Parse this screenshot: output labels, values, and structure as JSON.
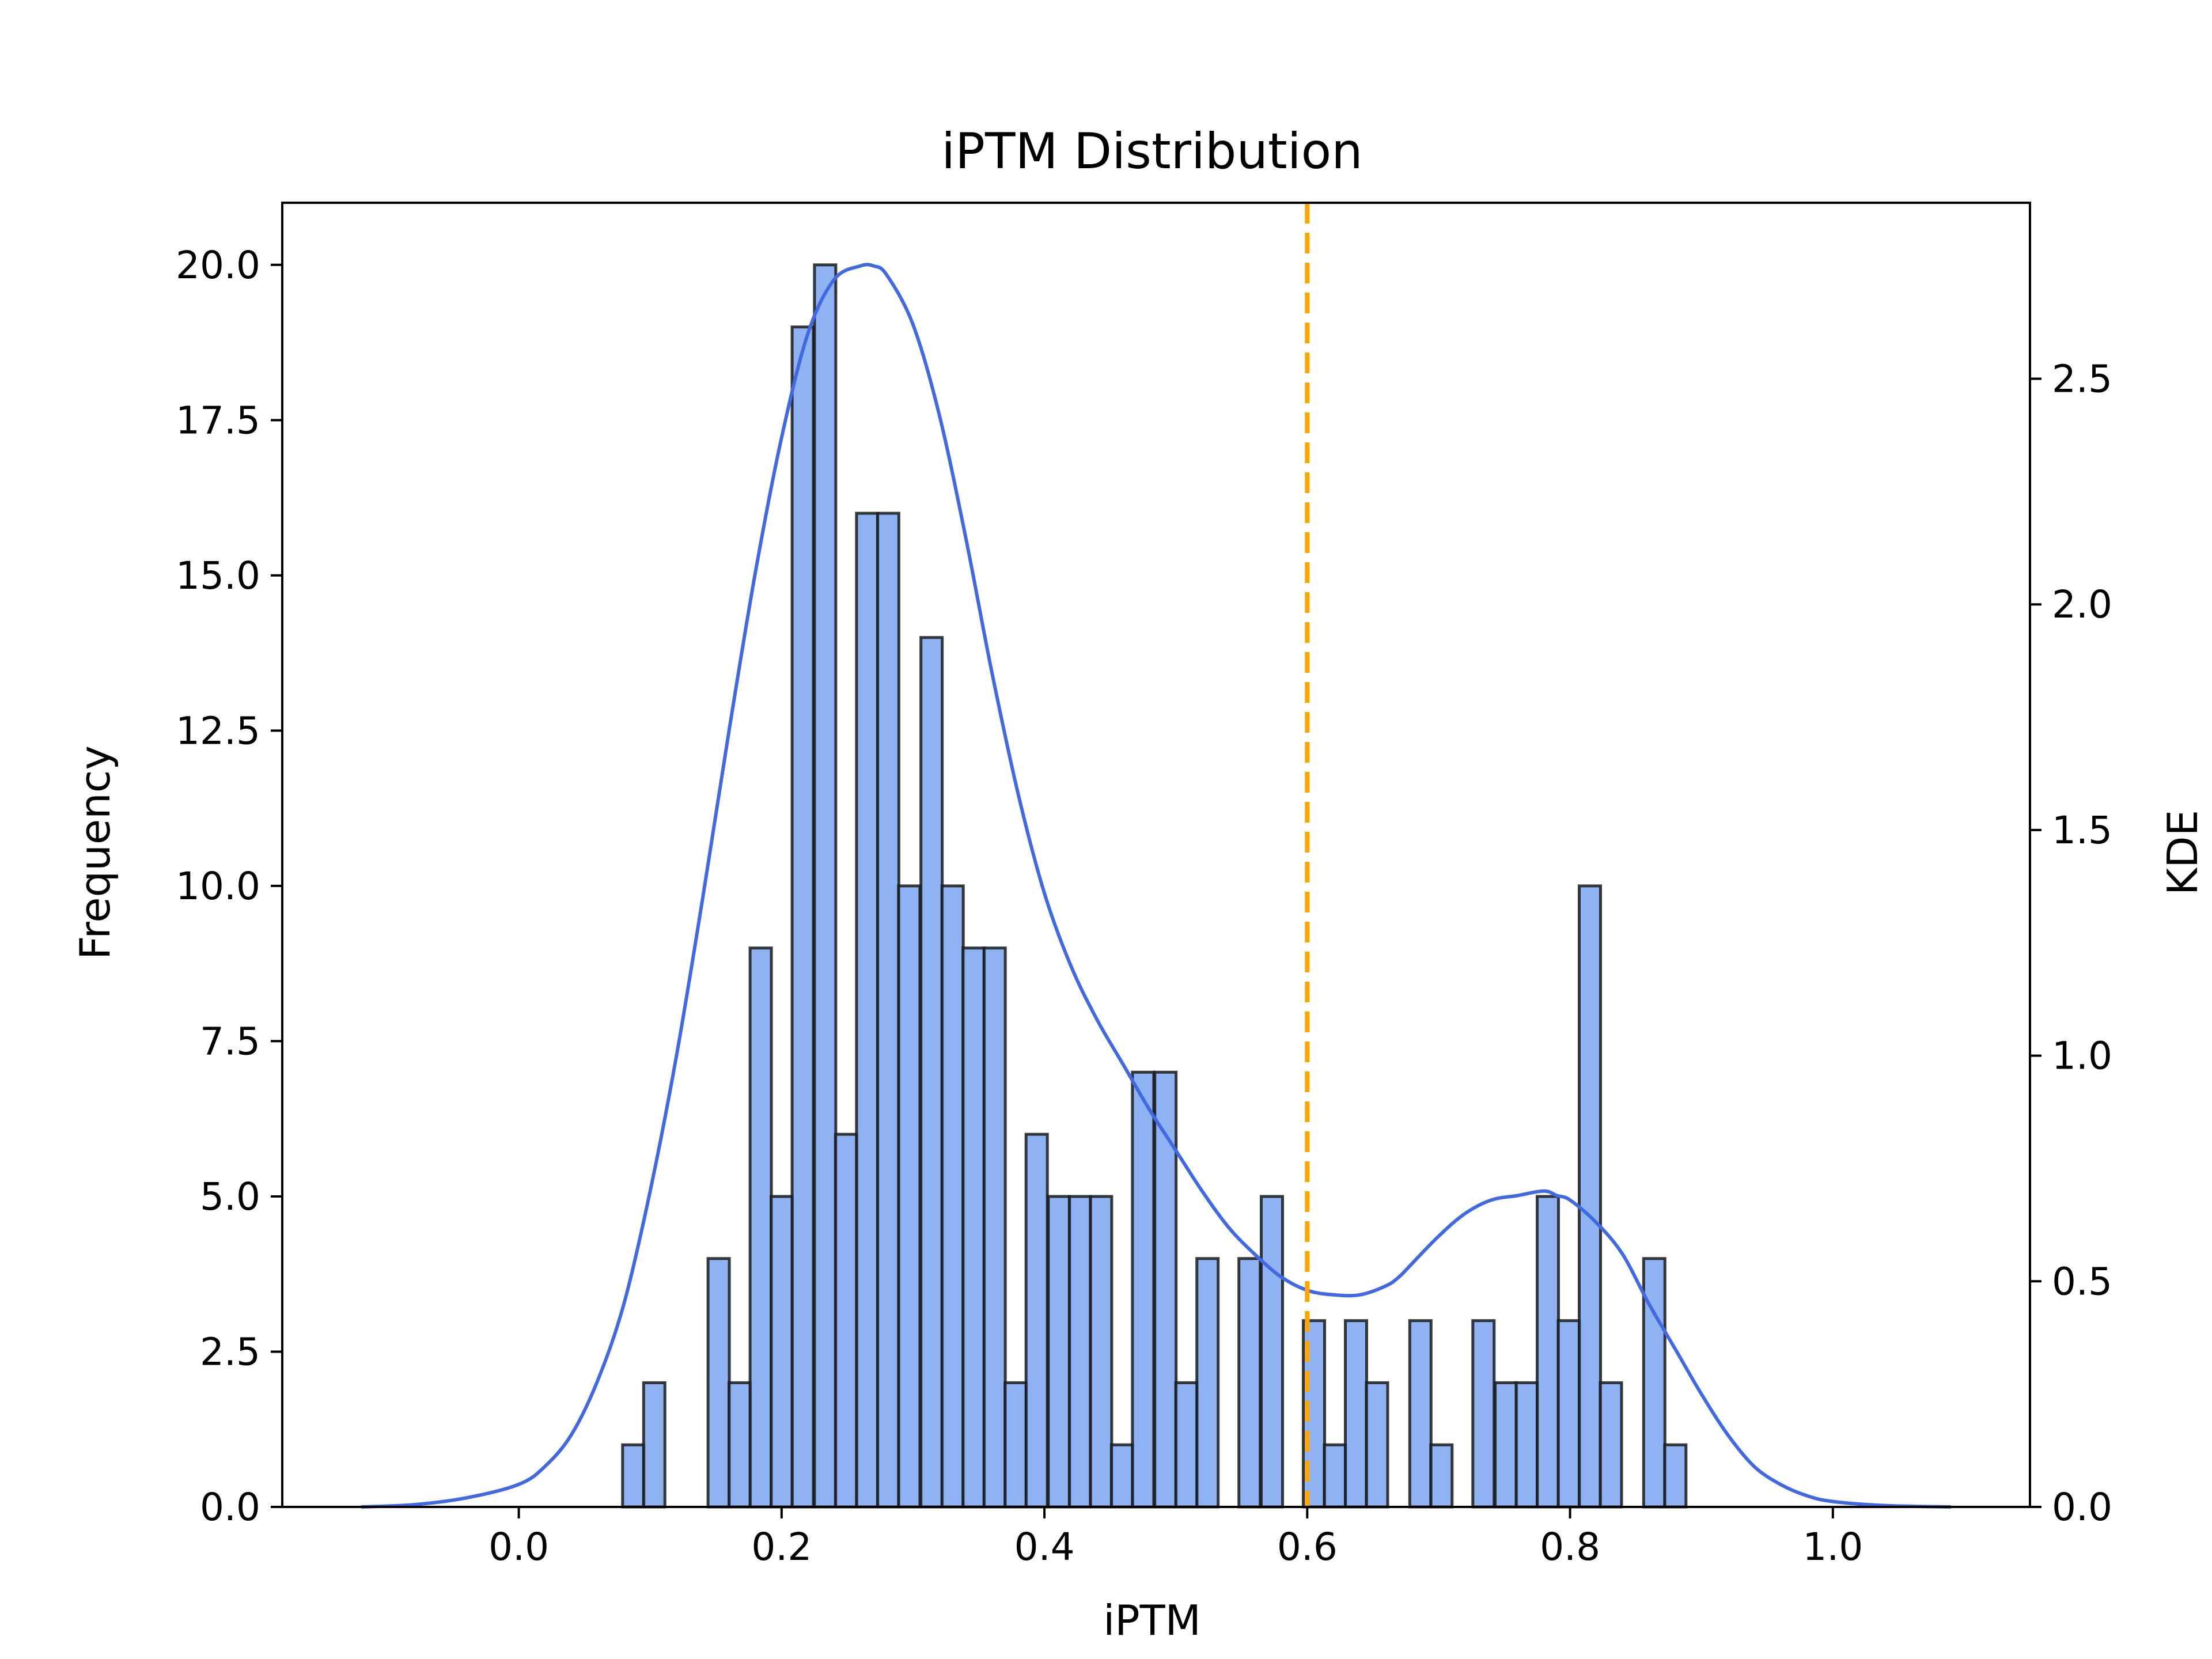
{
  "chart_data": {
    "type": "bar",
    "title": "iPTM Distribution",
    "xlabel": "iPTM",
    "ylabel": "Frequency",
    "y2label": "KDE",
    "xlim": [
      -0.18,
      1.15
    ],
    "ylim": [
      0,
      21
    ],
    "y2lim": [
      0,
      2.89
    ],
    "xticks": [
      "0.0",
      "0.2",
      "0.4",
      "0.6",
      "0.8",
      "1.0"
    ],
    "yticks": [
      "0.0",
      "2.5",
      "5.0",
      "7.5",
      "10.0",
      "12.5",
      "15.0",
      "17.5",
      "20.0"
    ],
    "y2ticks": [
      "0.0",
      "0.5",
      "1.0",
      "1.5",
      "2.0",
      "2.5"
    ],
    "bin_width": 0.0162,
    "histogram": {
      "bin_starts": [
        0.079,
        0.095,
        0.144,
        0.16,
        0.176,
        0.192,
        0.208,
        0.225,
        0.241,
        0.257,
        0.273,
        0.289,
        0.306,
        0.322,
        0.338,
        0.354,
        0.37,
        0.386,
        0.403,
        0.419,
        0.435,
        0.451,
        0.467,
        0.484,
        0.5,
        0.516,
        0.548,
        0.565,
        0.597,
        0.613,
        0.629,
        0.645,
        0.678,
        0.694,
        0.726,
        0.743,
        0.759,
        0.775,
        0.791,
        0.807,
        0.823,
        0.856,
        0.872
      ],
      "counts": [
        1,
        2,
        4,
        2,
        9,
        5,
        19,
        20,
        6,
        16,
        16,
        10,
        14,
        10,
        9,
        9,
        2,
        6,
        5,
        5,
        5,
        1,
        7,
        7,
        2,
        4,
        4,
        5,
        3,
        1,
        3,
        2,
        3,
        1,
        3,
        2,
        2,
        5,
        3,
        10,
        2,
        4,
        1
      ],
      "fill": "#6495ED",
      "edge": "#1a1a1a"
    },
    "kde": {
      "x": [
        -0.12,
        -0.08,
        -0.04,
        0.0,
        0.02,
        0.04,
        0.06,
        0.08,
        0.1,
        0.12,
        0.14,
        0.16,
        0.18,
        0.2,
        0.22,
        0.24,
        0.26,
        0.27,
        0.28,
        0.3,
        0.32,
        0.34,
        0.36,
        0.38,
        0.4,
        0.42,
        0.44,
        0.46,
        0.48,
        0.5,
        0.52,
        0.54,
        0.56,
        0.58,
        0.6,
        0.62,
        0.64,
        0.66,
        0.67,
        0.68,
        0.7,
        0.72,
        0.74,
        0.76,
        0.78,
        0.79,
        0.8,
        0.82,
        0.84,
        0.86,
        0.88,
        0.9,
        0.92,
        0.94,
        0.96,
        0.98,
        1.0,
        1.04,
        1.09
      ],
      "y": [
        0.0,
        0.005,
        0.02,
        0.05,
        0.09,
        0.16,
        0.28,
        0.45,
        0.7,
        1.0,
        1.35,
        1.72,
        2.07,
        2.37,
        2.6,
        2.72,
        2.75,
        2.75,
        2.73,
        2.62,
        2.42,
        2.15,
        1.85,
        1.58,
        1.36,
        1.2,
        1.08,
        0.98,
        0.88,
        0.79,
        0.7,
        0.62,
        0.56,
        0.51,
        0.48,
        0.47,
        0.47,
        0.49,
        0.51,
        0.54,
        0.6,
        0.65,
        0.68,
        0.69,
        0.7,
        0.69,
        0.68,
        0.63,
        0.56,
        0.45,
        0.35,
        0.25,
        0.16,
        0.09,
        0.05,
        0.025,
        0.012,
        0.003,
        0.0
      ],
      "color": "#4169E1"
    },
    "threshold": {
      "x": 0.6,
      "color": "#FFA500",
      "style": "dashed"
    },
    "grid": false,
    "legend": "none"
  }
}
